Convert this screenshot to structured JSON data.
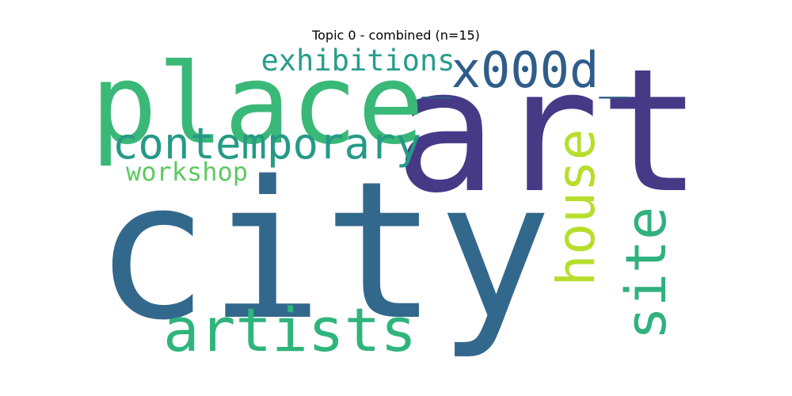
{
  "chart_data": {
    "type": "wordcloud",
    "title": "Topic 0 - combined (n=15)",
    "words": [
      {
        "text": "city",
        "color": "#33688d"
      },
      {
        "text": "art",
        "color": "#463a87"
      },
      {
        "text": "place",
        "color": "#3ab877"
      },
      {
        "text": "x000d",
        "color": "#2f5d8a"
      },
      {
        "text": "contemporary",
        "color": "#259a86"
      },
      {
        "text": "artists",
        "color": "#2fb47c"
      },
      {
        "text": "house",
        "color": "#b6de2b"
      },
      {
        "text": "site",
        "color": "#30b17d"
      },
      {
        "text": "exhibitions",
        "color": "#279d8b"
      },
      {
        "text": "workshop",
        "color": "#5ec962"
      }
    ]
  }
}
